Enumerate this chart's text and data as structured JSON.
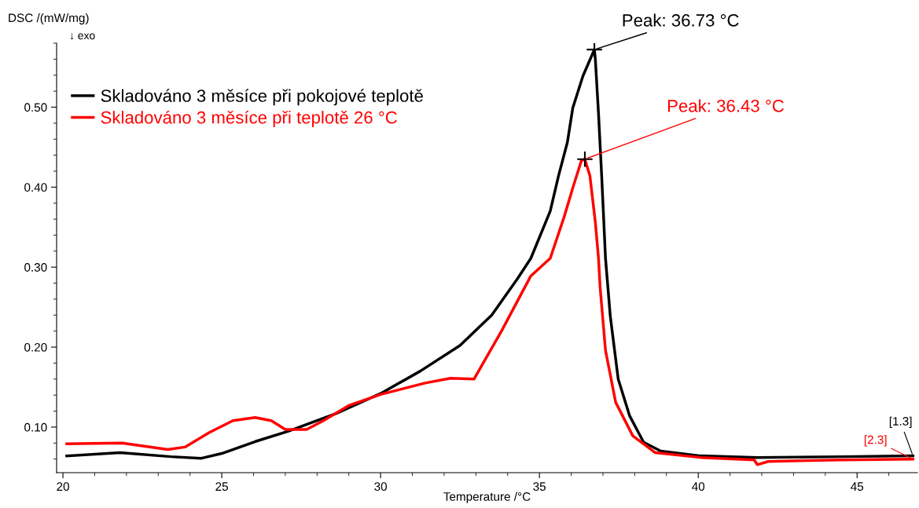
{
  "chart_data": {
    "type": "line",
    "ylabel": "DSC /(mW/mg)",
    "xlabel": "Temperature /°C",
    "xlim": [
      19.8,
      46.9
    ],
    "ylim": [
      0.043,
      0.58
    ],
    "xticks": [
      20,
      25,
      30,
      35,
      40,
      45
    ],
    "yticks": [
      {
        "value": 0.1,
        "label": "0.10"
      },
      {
        "value": 0.2,
        "label": "0.20"
      },
      {
        "value": 0.3,
        "label": "0.30"
      },
      {
        "value": 0.4,
        "label": "0.40"
      },
      {
        "value": 0.5,
        "label": "0.50"
      }
    ],
    "grid": false,
    "legend": "top left",
    "line_style": "solid",
    "marker": "none",
    "series": [
      {
        "name": "Skladováno 3 měsíce při pokojové teplotě",
        "color": "#000000",
        "x": [
          20.12,
          21.8,
          23.4,
          24.36,
          25.0,
          26.06,
          27.1,
          28.6,
          30.0,
          31.25,
          32.5,
          33.5,
          34.3,
          34.73,
          35.34,
          35.6,
          35.88,
          36.05,
          36.37,
          36.73,
          36.76,
          36.86,
          36.96,
          37.08,
          37.23,
          37.48,
          37.84,
          38.28,
          38.82,
          40.07,
          41.86,
          44.53,
          46.76
        ],
        "values": [
          0.064,
          0.068,
          0.063,
          0.061,
          0.067,
          0.082,
          0.095,
          0.117,
          0.142,
          0.17,
          0.202,
          0.24,
          0.285,
          0.311,
          0.37,
          0.414,
          0.456,
          0.499,
          0.539,
          0.572,
          0.56,
          0.492,
          0.414,
          0.311,
          0.239,
          0.16,
          0.114,
          0.081,
          0.07,
          0.064,
          0.062,
          0.063,
          0.064
        ]
      },
      {
        "name": "Skladováno 3 měsíce při teplotě 26 °C",
        "color": "#ff0000",
        "x": [
          20.12,
          21.86,
          23.3,
          23.84,
          24.6,
          25.35,
          26.05,
          26.56,
          27.0,
          27.67,
          28.2,
          29.0,
          30.02,
          31.4,
          32.2,
          32.94,
          33.82,
          34.73,
          35.34,
          35.78,
          36.05,
          36.32,
          36.43,
          36.59,
          36.76,
          36.86,
          36.91,
          37.08,
          37.4,
          37.94,
          38.65,
          40.07,
          41.76,
          41.86,
          42.2,
          44.5,
          46.76
        ],
        "values": [
          0.079,
          0.08,
          0.072,
          0.075,
          0.093,
          0.108,
          0.112,
          0.108,
          0.097,
          0.097,
          0.108,
          0.127,
          0.141,
          0.155,
          0.161,
          0.16,
          0.221,
          0.289,
          0.311,
          0.363,
          0.399,
          0.433,
          0.435,
          0.414,
          0.356,
          0.311,
          0.275,
          0.196,
          0.131,
          0.089,
          0.068,
          0.062,
          0.059,
          0.053,
          0.057,
          0.059,
          0.06
        ]
      }
    ],
    "annotations": [
      {
        "text": "Peak: 36.73 °C",
        "x": 36.73,
        "y": 0.572
      },
      {
        "text": "Peak: 36.43 °C",
        "x": 36.43,
        "y": 0.435
      },
      {
        "text": "[2.3]",
        "x": 46.76,
        "y": 0.06
      },
      {
        "text": "[1.3]",
        "x": 46.76,
        "y": 0.064
      },
      "↓ exo"
    ]
  }
}
